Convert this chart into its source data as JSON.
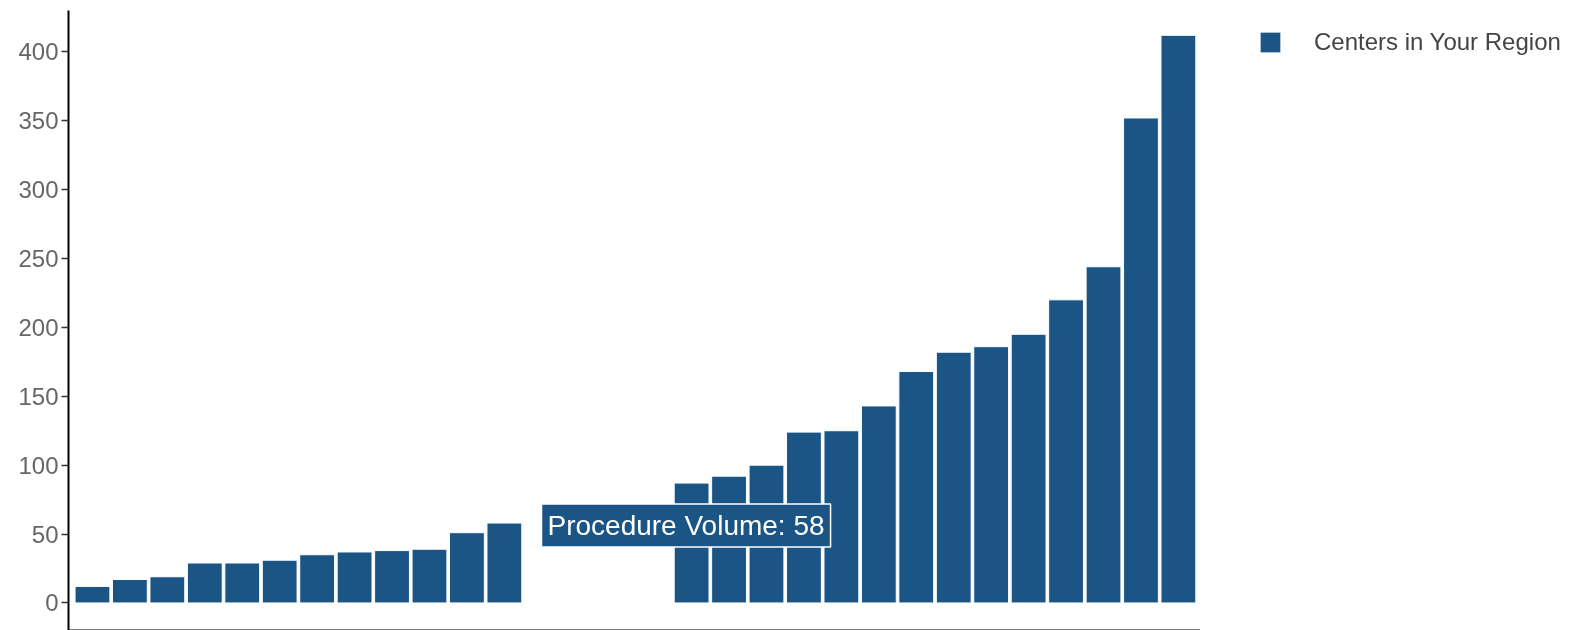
{
  "chart_data": {
    "type": "bar",
    "categories": [
      null,
      null,
      null,
      null,
      null,
      null,
      null,
      null,
      null,
      null,
      null,
      null,
      null,
      null,
      null,
      null,
      null,
      null,
      null,
      null,
      null,
      null,
      null,
      null,
      null,
      null,
      null,
      null,
      null,
      null
    ],
    "series": [
      {
        "name": "Centers in Your Region",
        "color": "#1b5586",
        "values": [
          12,
          17,
          19,
          29,
          29,
          31,
          35,
          37,
          38,
          39,
          51,
          58,
          null,
          null,
          null,
          null,
          87,
          92,
          100,
          124,
          125,
          143,
          168,
          182,
          186,
          195,
          220,
          244,
          352,
          412
        ]
      }
    ],
    "ylim": [
      -20,
      430
    ],
    "yticks": [
      0,
      50,
      100,
      150,
      200,
      250,
      300,
      350,
      400
    ],
    "grid": false,
    "legend": "top right",
    "tick_labels": "y",
    "annotations": [
      "Procedure Volume: 58"
    ]
  }
}
